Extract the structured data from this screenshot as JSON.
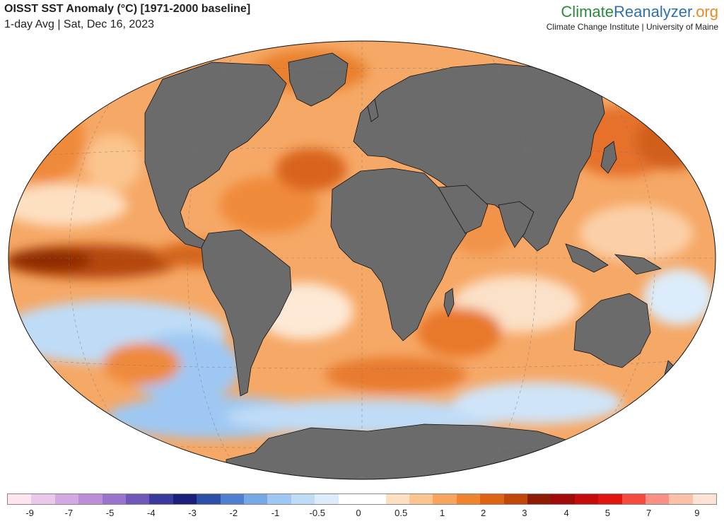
{
  "header": {
    "title": "OISST SST Anomaly (°C) [1971-2000 baseline]",
    "subtitle": "1-day Avg | Sat, Dec 16, 2023"
  },
  "brand": {
    "logo_part1": "Climate",
    "logo_part2": "Reanalyzer",
    "logo_part3": ".org",
    "tagline": "Climate Change Institute | University of Maine"
  },
  "legend": {
    "colors": [
      "#fde4ef",
      "#ecc7ec",
      "#d3a9e4",
      "#bd8ed8",
      "#9a74cc",
      "#6e57b8",
      "#3a3a9e",
      "#1a1f7a",
      "#2c4fa8",
      "#4f7fce",
      "#76a8e6",
      "#9ec8f3",
      "#bfdcf7",
      "#dcecfa",
      "#ffffff",
      "#ffffff",
      "#fde0c2",
      "#fbc58f",
      "#f7a45c",
      "#f0832d",
      "#df6314",
      "#c14709",
      "#8e1c05",
      "#a00a0a",
      "#c40c0c",
      "#e0140e",
      "#f54b3e",
      "#f98f85",
      "#fbc0a8",
      "#fde3d6"
    ],
    "ticks": [
      {
        "label": "-9",
        "pos": 0.032
      },
      {
        "label": "-7",
        "pos": 0.087
      },
      {
        "label": "-5",
        "pos": 0.145
      },
      {
        "label": "-4",
        "pos": 0.203
      },
      {
        "label": "-3",
        "pos": 0.261
      },
      {
        "label": "-2",
        "pos": 0.319
      },
      {
        "label": "-1",
        "pos": 0.378
      },
      {
        "label": "-0.5",
        "pos": 0.437
      },
      {
        "label": "0",
        "pos": 0.495
      },
      {
        "label": "0.5",
        "pos": 0.555
      },
      {
        "label": "1",
        "pos": 0.613
      },
      {
        "label": "2",
        "pos": 0.671
      },
      {
        "label": "3",
        "pos": 0.729
      },
      {
        "label": "4",
        "pos": 0.788
      },
      {
        "label": "5",
        "pos": 0.846
      },
      {
        "label": "7",
        "pos": 0.904
      },
      {
        "label": "9",
        "pos": 0.972
      }
    ]
  }
}
